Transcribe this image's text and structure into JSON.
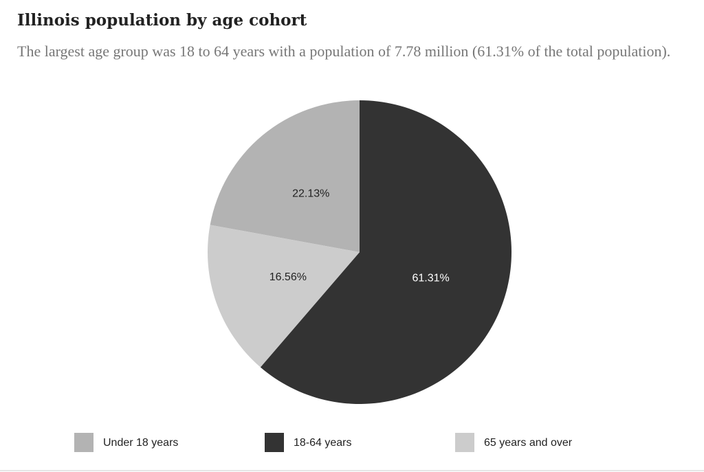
{
  "chart_data": {
    "type": "pie",
    "title": "Illinois population by age cohort",
    "subtitle": "The largest age group was 18 to 64 years with a population of 7.78 million (61.31% of the total population).",
    "categories": [
      "Under 18 years",
      "18-64 years",
      "65 years and over"
    ],
    "values": [
      22.13,
      61.31,
      16.56
    ],
    "value_labels": [
      "22.13%",
      "61.31%",
      "16.56%"
    ],
    "colors": [
      "#b3b3b3",
      "#333333",
      "#cccccc"
    ],
    "legend": "bottom"
  }
}
